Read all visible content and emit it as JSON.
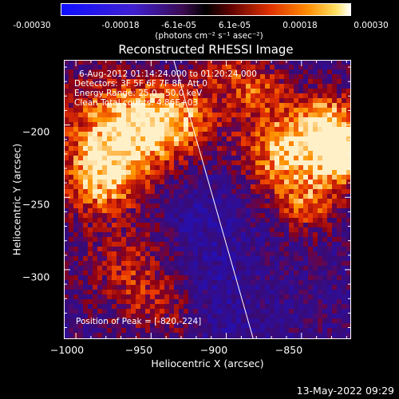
{
  "colorbar": {
    "ticks": [
      "-0.00030",
      "-0.00018",
      "-6.1e-05",
      "6.1e-05",
      "0.00018",
      "0.00030"
    ],
    "tick_values": [
      -0.0003,
      -0.00018,
      -6.1e-05,
      6.1e-05,
      0.00018,
      0.0003
    ],
    "unit_label": "(photons cm⁻² s⁻¹ asec⁻²)"
  },
  "chart_data": {
    "type": "heatmap",
    "title": "Reconstructed RHESSI Image",
    "xlabel": "Heliocentric X (arcsec)",
    "ylabel": "Heliocentric Y (arcsec)",
    "xlim": [
      -1008,
      -817
    ],
    "ylim": [
      -348,
      -155
    ],
    "xticks": [
      -1000,
      -950,
      -900,
      -850
    ],
    "yticks": [
      -200,
      -250,
      -300
    ],
    "xtick_labels": [
      "−1000",
      "−950",
      "−900",
      "−850"
    ],
    "ytick_labels": [
      "−200",
      "−250",
      "−300"
    ],
    "value_range": [
      -0.0003,
      0.0003
    ],
    "limb_line": [
      [
        -935,
        -155
      ],
      [
        -882,
        -348
      ]
    ],
    "annotations": [
      "6-Aug-2012 01:14:24.000 to 01:20:24.000",
      "Detectors: 3F 5F 6F 7F 8F, Att 0",
      "Energy Range: 25.0 - 50.0 keV",
      "Clean     Total counts: 4.86E+03"
    ],
    "peak_label": "Position of Peak = [-820,-224]",
    "peak": [
      -820,
      -224
    ]
  },
  "footer": {
    "timestamp": "13-May-2022 09:29"
  }
}
